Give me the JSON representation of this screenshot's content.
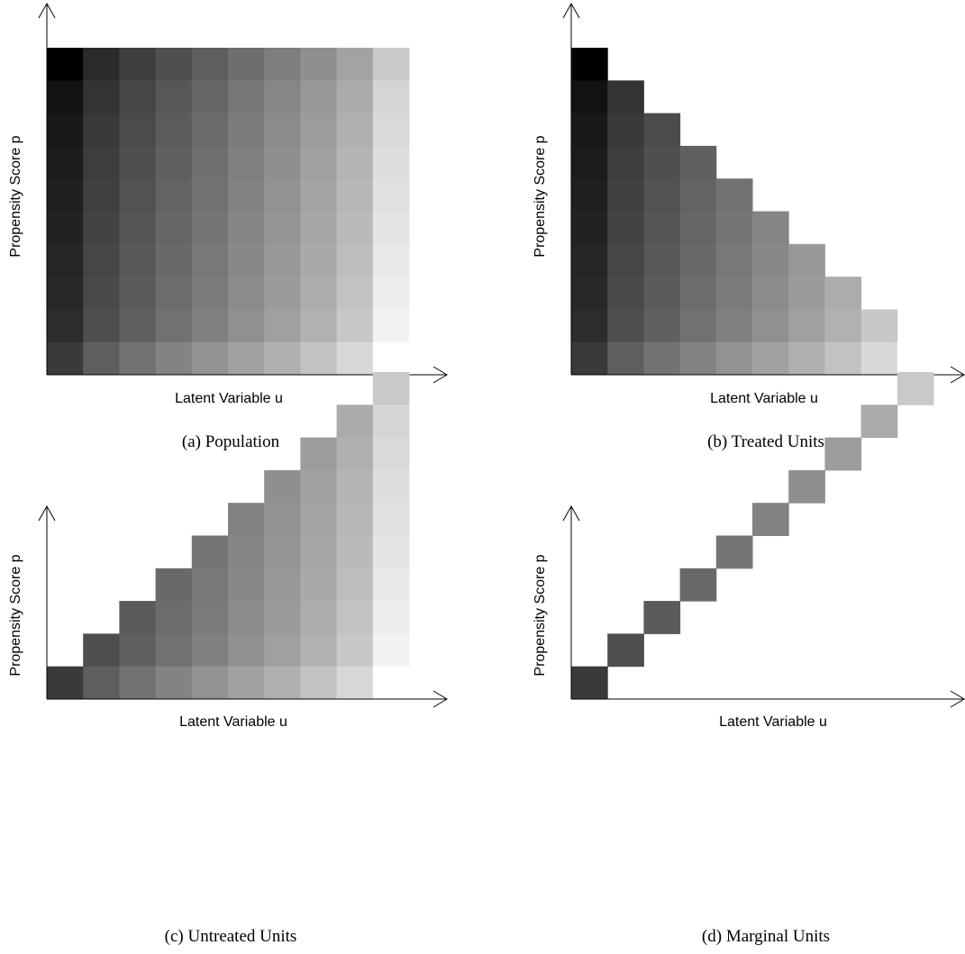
{
  "figure": {
    "grid": {
      "rows": 10,
      "cols": 10
    },
    "panels": [
      {
        "id": "a",
        "caption": "(a) Population",
        "xlabel": "Latent Variable u",
        "ylabel": "Propensity Score p",
        "subset": "all"
      },
      {
        "id": "b",
        "caption": "(b) Treated Units",
        "xlabel": "Latent Variable u",
        "ylabel": "Propensity Score p",
        "subset": "treated"
      },
      {
        "id": "c",
        "caption": "(c) Untreated Units",
        "xlabel": "Latent Variable u",
        "ylabel": "Propensity Score p",
        "subset": "untreated"
      },
      {
        "id": "d",
        "caption": "(d) Marginal Units",
        "xlabel": "Latent Variable u",
        "ylabel": "Propensity Score p",
        "subset": "marginal"
      }
    ],
    "cell_shades": [
      [
        "#000000",
        "#2a2a2a",
        "#3e3e3e",
        "#4f4f4f",
        "#5e5e5e",
        "#6e6e6e",
        "#7e7e7e",
        "#8f8f8f",
        "#a3a3a3",
        "#c9c9c9"
      ],
      [
        "#121212",
        "#333333",
        "#464646",
        "#575757",
        "#666666",
        "#767676",
        "#868686",
        "#979797",
        "#ababab",
        "#d5d5d5"
      ],
      [
        "#181818",
        "#393939",
        "#4b4b4b",
        "#5c5c5c",
        "#6b6b6b",
        "#7b7b7b",
        "#8b8b8b",
        "#9c9c9c",
        "#b0b0b0",
        "#d9d9d9"
      ],
      [
        "#1c1c1c",
        "#3d3d3d",
        "#4f4f4f",
        "#606060",
        "#6f6f6f",
        "#7f7f7f",
        "#8f8f8f",
        "#a0a0a0",
        "#b4b4b4",
        "#dddddd"
      ],
      [
        "#1f1f1f",
        "#404040",
        "#525252",
        "#636363",
        "#727272",
        "#828282",
        "#929292",
        "#a3a3a3",
        "#b7b7b7",
        "#e0e0e0"
      ],
      [
        "#222222",
        "#434343",
        "#555555",
        "#666666",
        "#757575",
        "#858585",
        "#959595",
        "#a6a6a6",
        "#bababa",
        "#e4e4e4"
      ],
      [
        "#252525",
        "#464646",
        "#585858",
        "#696969",
        "#787878",
        "#888888",
        "#989898",
        "#a9a9a9",
        "#bebebe",
        "#e8e8e8"
      ],
      [
        "#282828",
        "#494949",
        "#5b5b5b",
        "#6c6c6c",
        "#7b7b7b",
        "#8b8b8b",
        "#9b9b9b",
        "#acacac",
        "#c2c2c2",
        "#ededed"
      ],
      [
        "#2c2c2c",
        "#4e4e4e",
        "#606060",
        "#717171",
        "#808080",
        "#909090",
        "#a0a0a0",
        "#b1b1b1",
        "#c8c8c8",
        "#f2f2f2"
      ],
      [
        "#3a3a3a",
        "#5e5e5e",
        "#727272",
        "#838383",
        "#929292",
        "#a1a1a1",
        "#b0b0b0",
        "#c2c2c2",
        "#d8d8d8",
        "#ffffff"
      ]
    ]
  }
}
